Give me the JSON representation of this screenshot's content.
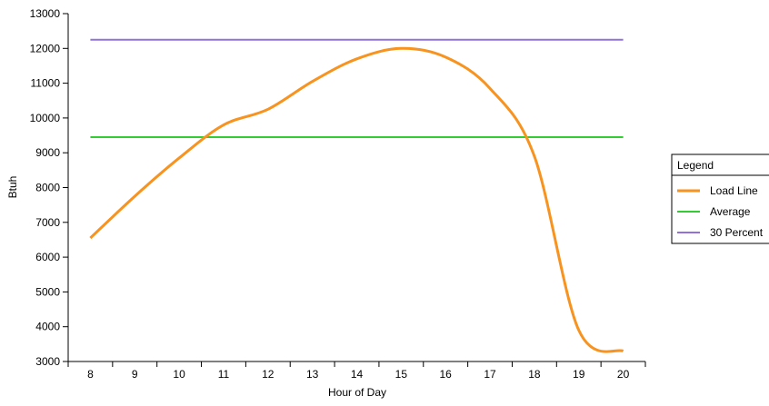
{
  "chart_data": {
    "type": "line",
    "title": "",
    "xlabel": "Hour of Day",
    "ylabel": "Btuh",
    "xlim": [
      7.5,
      20.5
    ],
    "ylim": [
      3000,
      13000
    ],
    "x_ticks": [
      8,
      9,
      10,
      11,
      12,
      13,
      14,
      15,
      16,
      17,
      18,
      19,
      20
    ],
    "y_ticks": [
      3000,
      4000,
      5000,
      6000,
      7000,
      8000,
      9000,
      10000,
      11000,
      12000,
      13000
    ],
    "grid": false,
    "legend_title": "Legend",
    "legend_position": "right",
    "series": [
      {
        "name": "Load Line",
        "color": "#f7931e",
        "x": [
          8,
          9,
          10,
          11,
          12,
          13,
          14,
          15,
          16,
          17,
          18,
          19,
          20
        ],
        "values": [
          6550,
          7750,
          8850,
          9800,
          10250,
          11050,
          11700,
          12000,
          11750,
          10850,
          8900,
          3900,
          3300
        ]
      },
      {
        "name": "Average",
        "color": "#33cc33",
        "x": [
          8,
          20
        ],
        "values": [
          9450,
          9450
        ]
      },
      {
        "name": "30 Percent",
        "color": "#9370db",
        "x": [
          8,
          20
        ],
        "values": [
          12250,
          12250
        ]
      }
    ]
  }
}
